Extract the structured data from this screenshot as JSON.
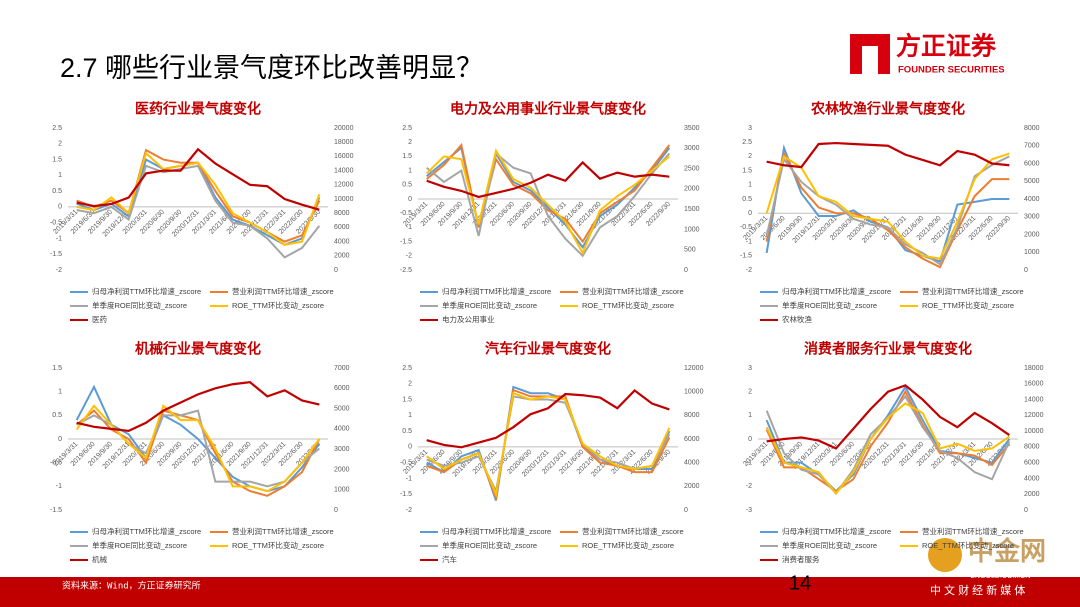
{
  "title": "2.7 哪些行业景气度环比改善明显？",
  "logo": {
    "name": "方正证券",
    "sub": "FOUNDER SECURITIES"
  },
  "source": "资料来源：Wind，方正证券研究所",
  "page": "14",
  "watermark": {
    "name": "中金网",
    "url": "CNGOLD.COM.CN",
    "slogan": "中 文 财 经 新 媒 体"
  },
  "chart_data": [
    {
      "type": "line",
      "title": "医药行业景气度变化",
      "categories": [
        "2019/3/31",
        "2019/6/30",
        "2019/9/30",
        "2019/12/31",
        "2020/3/31",
        "2020/6/30",
        "2020/9/30",
        "2020/12/31",
        "2021/3/31",
        "2021/6/30",
        "2021/9/30",
        "2021/12/31",
        "2022/3/31",
        "2022/6/30",
        "2022/9/30"
      ],
      "series": [
        {
          "name": "归母净利润TTM环比增速_zscore",
          "color": "#5b9bd5",
          "values": [
            0.1,
            -0.1,
            0.1,
            -0.3,
            1.5,
            1.2,
            1.3,
            1.4,
            0.3,
            -0.4,
            -0.6,
            -0.9,
            -1.2,
            -1.0,
            0.3
          ]
        },
        {
          "name": "营业利润TTM环比增速_zscore",
          "color": "#ed7d31",
          "values": [
            0.2,
            0.0,
            0.2,
            -0.2,
            1.8,
            1.5,
            1.4,
            1.4,
            0.5,
            -0.3,
            -0.5,
            -0.8,
            -1.1,
            -0.9,
            0.2
          ]
        },
        {
          "name": "单季度ROE同比变动_zscore",
          "color": "#a5a5a5",
          "values": [
            -0.1,
            -0.2,
            0.0,
            -0.4,
            1.3,
            1.1,
            1.2,
            1.3,
            0.2,
            -0.5,
            -0.6,
            -1.0,
            -1.6,
            -1.3,
            -0.6
          ]
        },
        {
          "name": "ROE_TTM环比变动_zscore",
          "color": "#ffc000",
          "values": [
            0.0,
            -0.1,
            0.3,
            -0.2,
            1.7,
            1.2,
            1.3,
            1.4,
            0.7,
            -0.2,
            -0.5,
            -0.8,
            -1.2,
            -1.1,
            0.4
          ]
        },
        {
          "name": "医药",
          "color": "#c00000",
          "axis": "y2",
          "values": [
            9500,
            9000,
            9300,
            10200,
            13600,
            14000,
            14000,
            17000,
            15000,
            13500,
            12000,
            11800,
            10000,
            9200,
            8500
          ]
        }
      ],
      "ylim": [
        -2,
        2.5
      ],
      "yticks": [
        -2,
        -1.5,
        -1,
        -0.5,
        0,
        0.5,
        1,
        1.5,
        2,
        2.5
      ],
      "y2lim": [
        0,
        20000
      ],
      "y2ticks": [
        0,
        2000,
        4000,
        6000,
        8000,
        10000,
        12000,
        14000,
        16000,
        18000,
        20000
      ]
    },
    {
      "type": "line",
      "title": "电力及公用事业行业景气度变化",
      "categories": [
        "2019/3/31",
        "2019/6/30",
        "2019/9/30",
        "2019/12/31",
        "2020/3/31",
        "2020/6/30",
        "2020/9/30",
        "2020/12/31",
        "2021/3/31",
        "2021/6/30",
        "2021/9/30",
        "2021/12/31",
        "2022/3/31",
        "2022/6/30",
        "2022/9/30"
      ],
      "series": [
        {
          "name": "归母净利润TTM环比增速_zscore",
          "color": "#5b9bd5",
          "values": [
            0.8,
            1.3,
            1.8,
            -1.0,
            1.6,
            0.6,
            0.3,
            -0.3,
            -0.9,
            -1.7,
            -0.6,
            -0.2,
            0.4,
            1.0,
            1.8
          ]
        },
        {
          "name": "营业利润TTM环比增速_zscore",
          "color": "#ed7d31",
          "values": [
            0.7,
            1.2,
            1.9,
            -1.0,
            1.4,
            0.5,
            0.2,
            -0.4,
            -0.7,
            -1.5,
            -0.5,
            -0.1,
            0.3,
            1.1,
            1.9
          ]
        },
        {
          "name": "单季度ROE同比变动_zscore",
          "color": "#a5a5a5",
          "values": [
            1.1,
            0.6,
            1.0,
            -1.3,
            1.6,
            1.1,
            0.9,
            -0.6,
            -1.4,
            -2.0,
            -1.0,
            -0.6,
            0.1,
            0.9,
            1.6
          ]
        },
        {
          "name": "ROE_TTM环比变动_zscore",
          "color": "#ffc000",
          "values": [
            0.9,
            1.5,
            1.4,
            -0.9,
            1.7,
            0.7,
            0.4,
            -0.2,
            -0.8,
            -1.9,
            -0.4,
            0.1,
            0.5,
            1.0,
            1.5
          ]
        },
        {
          "name": "电力及公用事业",
          "color": "#c00000",
          "axis": "y2",
          "values": [
            2200,
            2050,
            1950,
            1800,
            1900,
            2000,
            2150,
            2350,
            2200,
            2650,
            2250,
            2400,
            2300,
            2350,
            2300
          ]
        }
      ],
      "ylim": [
        -2.5,
        2.5
      ],
      "yticks": [
        -2.5,
        -2,
        -1.5,
        -1,
        -0.5,
        0,
        0.5,
        1,
        1.5,
        2,
        2.5
      ],
      "y2lim": [
        0,
        3500
      ],
      "y2ticks": [
        0,
        500,
        1000,
        1500,
        2000,
        2500,
        3000,
        3500
      ]
    },
    {
      "type": "line",
      "title": "农林牧渔行业景气度变化",
      "categories": [
        "2019/3/31",
        "2019/6/30",
        "2019/9/30",
        "2019/12/31",
        "2020/3/31",
        "2020/6/30",
        "2020/9/30",
        "2020/12/31",
        "2021/3/31",
        "2021/6/30",
        "2021/9/30",
        "2021/12/31",
        "2022/3/31",
        "2022/6/30",
        "2022/9/30"
      ],
      "series": [
        {
          "name": "归母净利润TTM环比增速_zscore",
          "color": "#5b9bd5",
          "values": [
            -1.4,
            2.3,
            0.7,
            -0.1,
            -0.1,
            0.1,
            -0.3,
            -0.5,
            -1.3,
            -1.5,
            -1.7,
            0.3,
            0.4,
            0.5,
            0.5
          ]
        },
        {
          "name": "营业利润TTM环比增速_zscore",
          "color": "#ed7d31",
          "values": [
            -1.0,
            2.1,
            0.9,
            0.2,
            0.0,
            0.0,
            -0.2,
            -0.6,
            -1.2,
            -1.6,
            -1.9,
            -0.6,
            0.6,
            1.2,
            1.2
          ]
        },
        {
          "name": "单季度ROE同比变动_zscore",
          "color": "#a5a5a5",
          "values": [
            -0.8,
            1.9,
            1.1,
            0.6,
            0.3,
            -0.2,
            -0.4,
            -0.5,
            -1.1,
            -1.4,
            -1.8,
            -0.5,
            1.3,
            1.7,
            2.0
          ]
        },
        {
          "name": "ROE_TTM环比变动_zscore",
          "color": "#ffc000",
          "values": [
            0.0,
            2.0,
            1.6,
            0.6,
            0.4,
            -0.1,
            -0.2,
            -0.3,
            -1.0,
            -1.5,
            -1.6,
            -0.3,
            1.2,
            1.9,
            2.1
          ]
        },
        {
          "name": "农林牧渔",
          "color": "#c00000",
          "axis": "y2",
          "values": [
            6100,
            5900,
            5800,
            7100,
            7150,
            7100,
            7050,
            7000,
            6500,
            6200,
            5900,
            6700,
            6500,
            6000,
            5900
          ]
        }
      ],
      "ylim": [
        -2,
        3
      ],
      "yticks": [
        -2,
        -1.5,
        -1,
        -0.5,
        0,
        0.5,
        1,
        1.5,
        2,
        2.5,
        3
      ],
      "y2lim": [
        0,
        8000
      ],
      "y2ticks": [
        0,
        1000,
        2000,
        3000,
        4000,
        5000,
        6000,
        7000,
        8000
      ]
    },
    {
      "type": "line",
      "title": "机械行业景气度变化",
      "categories": [
        "2019/3/31",
        "2019/6/30",
        "2019/9/30",
        "2019/12/31",
        "2020/3/31",
        "2020/6/30",
        "2020/9/30",
        "2020/12/31",
        "2021/3/31",
        "2021/6/30",
        "2021/9/30",
        "2021/12/31",
        "2022/3/31",
        "2022/6/30",
        "2022/9/30"
      ],
      "series": [
        {
          "name": "归母净利润TTM环比增速_zscore",
          "color": "#5b9bd5",
          "values": [
            0.4,
            1.1,
            0.3,
            0.1,
            -0.4,
            0.5,
            0.3,
            0.0,
            -0.4,
            -0.8,
            -1.0,
            -1.1,
            -1.0,
            -0.6,
            -0.1
          ]
        },
        {
          "name": "营业利润TTM环比增速_zscore",
          "color": "#ed7d31",
          "values": [
            0.3,
            0.6,
            0.2,
            0.0,
            -0.5,
            0.6,
            0.5,
            0.4,
            -0.3,
            -0.9,
            -1.1,
            -1.2,
            -1.0,
            -0.7,
            0.0
          ]
        },
        {
          "name": "单季度ROE同比变动_zscore",
          "color": "#a5a5a5",
          "values": [
            0.3,
            0.5,
            0.3,
            -0.1,
            -0.3,
            0.5,
            0.5,
            0.6,
            -0.9,
            -0.9,
            -0.9,
            -1.0,
            -0.9,
            -0.5,
            -0.2
          ]
        },
        {
          "name": "ROE_TTM环比变动_zscore",
          "color": "#ffc000",
          "values": [
            0.2,
            0.7,
            0.3,
            -0.1,
            -0.4,
            0.7,
            0.4,
            0.4,
            -0.2,
            -1.0,
            -1.0,
            -1.1,
            -0.9,
            -0.5,
            0.0
          ]
        },
        {
          "name": "机械",
          "color": "#c00000",
          "axis": "y2",
          "values": [
            4300,
            4100,
            4000,
            3900,
            4300,
            4900,
            5300,
            5700,
            6000,
            6200,
            6300,
            5600,
            5900,
            5400,
            5200
          ]
        }
      ],
      "ylim": [
        -1.5,
        1.5
      ],
      "yticks": [
        -1.5,
        -1,
        -0.5,
        0,
        0.5,
        1,
        1.5
      ],
      "y2lim": [
        0,
        7000
      ],
      "y2ticks": [
        0,
        1000,
        2000,
        3000,
        4000,
        5000,
        6000,
        7000
      ]
    },
    {
      "type": "line",
      "title": "汽车行业景气度变化",
      "categories": [
        "2019/3/31",
        "2019/6/30",
        "2019/9/30",
        "2019/12/31",
        "2020/3/31",
        "2020/6/30",
        "2020/9/30",
        "2020/12/31",
        "2021/3/31",
        "2021/6/30",
        "2021/9/30",
        "2021/12/31",
        "2022/3/31",
        "2022/6/30",
        "2022/9/30"
      ],
      "series": [
        {
          "name": "归母净利润TTM环比增速_zscore",
          "color": "#5b9bd5",
          "values": [
            -0.5,
            -0.8,
            -0.3,
            -0.1,
            -1.7,
            1.9,
            1.7,
            1.7,
            1.5,
            0.0,
            -0.4,
            -0.6,
            -0.7,
            -0.7,
            0.5
          ]
        },
        {
          "name": "营业利润TTM环比增速_zscore",
          "color": "#ed7d31",
          "values": [
            -0.6,
            -0.8,
            -0.4,
            -0.2,
            -1.6,
            1.8,
            1.6,
            1.6,
            1.6,
            0.0,
            -0.5,
            -0.6,
            -0.8,
            -0.8,
            0.3
          ]
        },
        {
          "name": "单季度ROE同比变动_zscore",
          "color": "#a5a5a5",
          "values": [
            -0.4,
            -0.6,
            -0.5,
            -0.3,
            -1.4,
            1.6,
            1.5,
            1.5,
            1.4,
            0.1,
            -0.4,
            -0.5,
            -0.7,
            -0.6,
            0.4
          ]
        },
        {
          "name": "ROE_TTM环比变动_zscore",
          "color": "#ffc000",
          "values": [
            -0.3,
            -0.7,
            -0.4,
            -0.2,
            -1.5,
            1.7,
            1.5,
            1.6,
            1.5,
            0.1,
            -0.3,
            -0.6,
            -0.7,
            -0.6,
            0.6
          ]
        },
        {
          "name": "汽车",
          "color": "#c00000",
          "axis": "y2",
          "values": [
            5900,
            5500,
            5300,
            5700,
            6100,
            7000,
            8100,
            8600,
            9800,
            9700,
            9500,
            8600,
            10100,
            9000,
            8500
          ]
        }
      ],
      "ylim": [
        -2,
        2.5
      ],
      "yticks": [
        -2,
        -1.5,
        -1,
        -0.5,
        0,
        0.5,
        1,
        1.5,
        2,
        2.5
      ],
      "y2lim": [
        0,
        12000
      ],
      "y2ticks": [
        0,
        2000,
        4000,
        6000,
        8000,
        10000,
        12000
      ]
    },
    {
      "type": "line",
      "title": "消费者服务行业景气度变化",
      "categories": [
        "2019/3/31",
        "2019/6/30",
        "2019/9/30",
        "2019/12/31",
        "2020/3/31",
        "2020/6/30",
        "2020/9/30",
        "2020/12/31",
        "2021/3/31",
        "2021/6/30",
        "2021/9/30",
        "2021/12/31",
        "2022/3/31",
        "2022/6/30",
        "2022/9/30"
      ],
      "series": [
        {
          "name": "归母净利润TTM环比增速_zscore",
          "color": "#5b9bd5",
          "values": [
            0.8,
            -1.0,
            -1.0,
            -1.5,
            -2.2,
            -1.5,
            0.0,
            1.0,
            2.2,
            0.8,
            -0.5,
            -0.6,
            -0.8,
            -1.0,
            0.0
          ]
        },
        {
          "name": "营业利润TTM环比增速_zscore",
          "color": "#ed7d31",
          "values": [
            0.4,
            -1.2,
            -1.2,
            -1.7,
            -2.2,
            -1.7,
            -0.3,
            0.7,
            2.0,
            0.6,
            -0.6,
            -0.6,
            -0.7,
            -1.1,
            -0.2
          ]
        },
        {
          "name": "单季度ROE同比变动_zscore",
          "color": "#a5a5a5",
          "values": [
            1.2,
            -0.6,
            -1.3,
            -1.5,
            -2.3,
            -1.3,
            0.2,
            0.9,
            1.8,
            0.5,
            -0.5,
            -0.8,
            -1.4,
            -1.7,
            -0.1
          ]
        },
        {
          "name": "ROE_TTM环比变动_zscore",
          "color": "#ffc000",
          "values": [
            0.5,
            -1.0,
            -1.2,
            -1.4,
            -2.3,
            -1.4,
            0.0,
            0.9,
            1.5,
            1.1,
            -0.4,
            -0.2,
            -0.5,
            -0.4,
            0.1
          ]
        },
        {
          "name": "消费者服务",
          "color": "#c00000",
          "axis": "y2",
          "values": [
            8700,
            9000,
            9200,
            8800,
            7800,
            10300,
            12800,
            15000,
            15800,
            14000,
            11800,
            10500,
            12300,
            11000,
            9500
          ]
        }
      ],
      "ylim": [
        -3,
        3
      ],
      "yticks": [
        -3,
        -2,
        -1,
        0,
        1,
        2,
        3
      ],
      "y2lim": [
        0,
        18000
      ],
      "y2ticks": [
        0,
        2000,
        4000,
        6000,
        8000,
        10000,
        12000,
        14000,
        16000,
        18000
      ]
    }
  ]
}
